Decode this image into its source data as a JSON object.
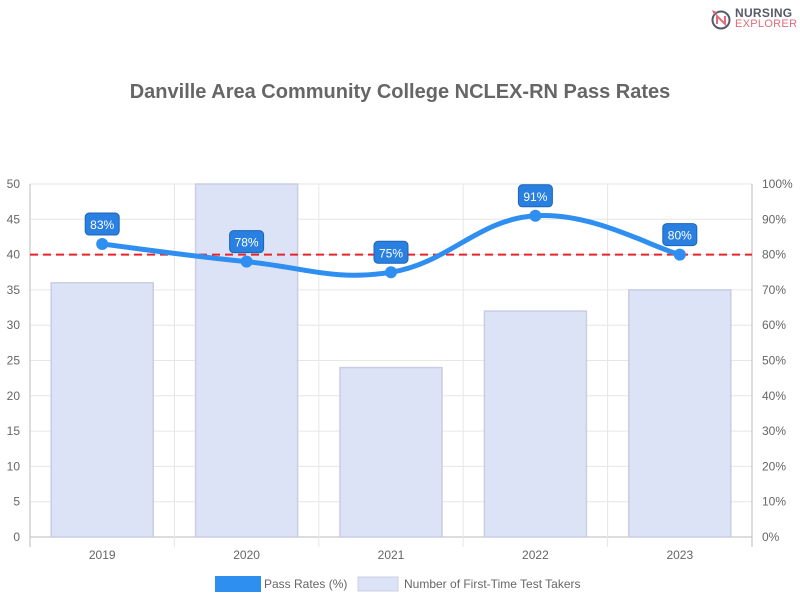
{
  "logo": {
    "line1": "NURSING",
    "line2": "EXPLORER"
  },
  "chart_data": {
    "type": "bar+line",
    "title": "Danville Area Community College NCLEX-RN Pass Rates",
    "categories": [
      "2019",
      "2020",
      "2021",
      "2022",
      "2023"
    ],
    "series": [
      {
        "name": "Pass Rates (%)",
        "type": "line",
        "axis": "right",
        "values": [
          83,
          78,
          75,
          91,
          80
        ],
        "color": "#2f8ff0",
        "data_labels": [
          "83%",
          "78%",
          "75%",
          "91%",
          "80%"
        ]
      },
      {
        "name": "Number of First-Time Test Takers",
        "type": "bar",
        "axis": "left",
        "values": [
          36,
          50,
          24,
          32,
          35
        ],
        "color": "#dde3f7"
      }
    ],
    "y_left": {
      "range": [
        0,
        50
      ],
      "ticks": [
        0,
        5,
        10,
        15,
        20,
        25,
        30,
        35,
        40,
        45,
        50
      ]
    },
    "y_right": {
      "range": [
        0,
        100
      ],
      "ticks": [
        "0%",
        "10%",
        "20%",
        "30%",
        "40%",
        "50%",
        "60%",
        "70%",
        "80%",
        "90%",
        "100%"
      ]
    },
    "reference_line": {
      "value": 80,
      "axis": "right",
      "style": "dashed",
      "color": "#e8242a"
    },
    "grid": true,
    "legend_position": "bottom"
  }
}
